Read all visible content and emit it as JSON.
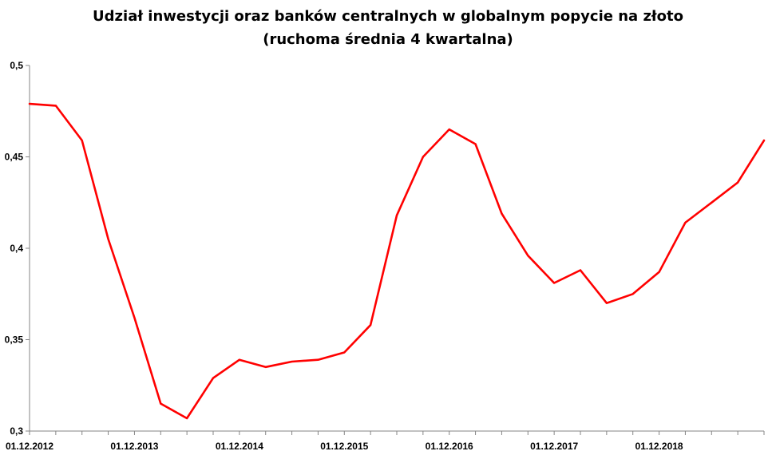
{
  "chart_data": {
    "type": "line",
    "title_line1": "Udział inwestycji oraz banków centralnych w globalnym popycie na złoto",
    "title_line2": "(ruchoma średnia 4 kwartalna)",
    "xlabel": "",
    "ylabel": "",
    "ylim": [
      0.3,
      0.5
    ],
    "y_ticks": [
      "0,3",
      "0,35",
      "0,4",
      "0,45",
      "0,5"
    ],
    "x_ticks": [
      "01.12.2012",
      "01.12.2013",
      "01.12.2014",
      "01.12.2015",
      "01.12.2016",
      "01.12.2017",
      "01.12.2018"
    ],
    "grid": false,
    "series": [
      {
        "color": "#ff0000",
        "values": [
          0.479,
          0.478,
          0.459,
          0.405,
          0.362,
          0.315,
          0.307,
          0.329,
          0.339,
          0.335,
          0.338,
          0.339,
          0.343,
          0.358,
          0.418,
          0.45,
          0.465,
          0.457,
          0.419,
          0.396,
          0.381,
          0.388,
          0.37,
          0.375,
          0.387,
          0.414,
          0.425,
          0.436,
          0.459
        ]
      }
    ]
  }
}
